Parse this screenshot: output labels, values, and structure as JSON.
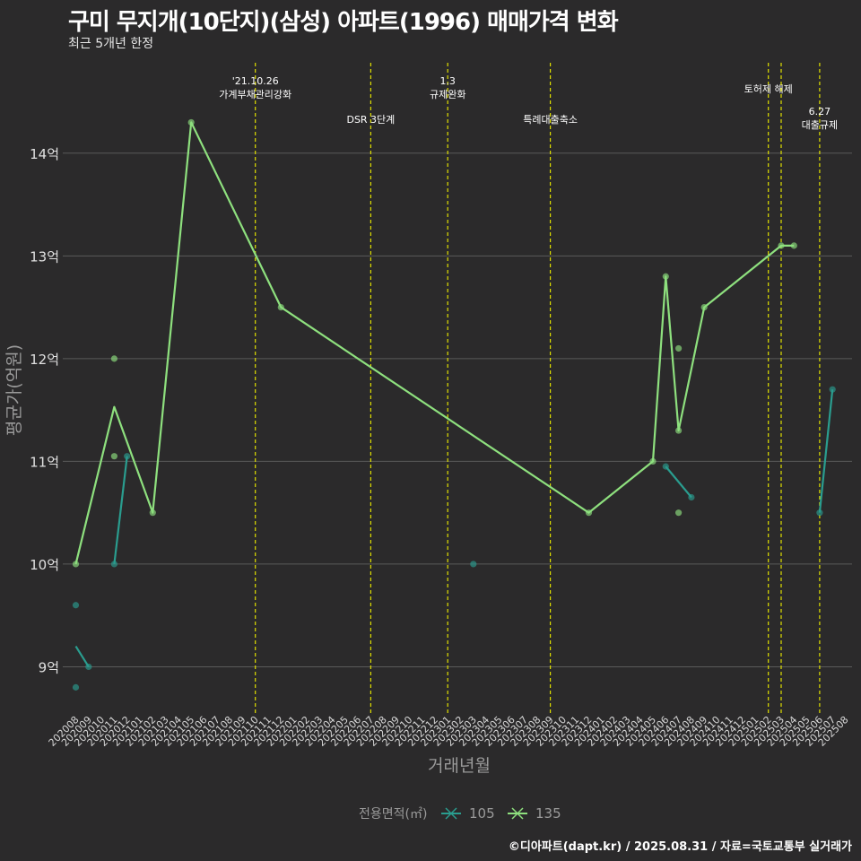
{
  "header": {
    "title": "구미 무지개(10단지)(삼성) 아파트(1996) 매매가격 변화",
    "subtitle": "최근 5개년 한정"
  },
  "caption": "©디아파트(dapt.kr) / 2025.08.31 / 자료=국토교통부 실거래가",
  "colors": {
    "background": "#2b2a2b",
    "grid": "#5a5a5a",
    "event_line": "#e0e000",
    "series_105": "#2a9d8f",
    "series_135": "#8ee07e"
  },
  "chart_data": {
    "type": "line",
    "xlabel": "거래년월",
    "ylabel": "평균가(억원)",
    "ylim": [
      8.55,
      14.95
    ],
    "y_ticks": [
      {
        "value": 9,
        "label": "9억"
      },
      {
        "value": 10,
        "label": "10억"
      },
      {
        "value": 11,
        "label": "11억"
      },
      {
        "value": 12,
        "label": "12억"
      },
      {
        "value": 13,
        "label": "13억"
      },
      {
        "value": 14,
        "label": "14억"
      }
    ],
    "x_categories": [
      "202008",
      "202009",
      "202010",
      "202011",
      "202012",
      "202101",
      "202102",
      "202103",
      "202104",
      "202105",
      "202106",
      "202107",
      "202108",
      "202109",
      "202110",
      "202111",
      "202112",
      "202201",
      "202202",
      "202203",
      "202204",
      "202205",
      "202206",
      "202207",
      "202208",
      "202209",
      "202210",
      "202211",
      "202212",
      "202301",
      "202302",
      "202303",
      "202304",
      "202305",
      "202306",
      "202307",
      "202308",
      "202309",
      "202310",
      "202311",
      "202312",
      "202401",
      "202402",
      "202403",
      "202404",
      "202405",
      "202406",
      "202407",
      "202408",
      "202409",
      "202410",
      "202411",
      "202412",
      "202501",
      "202502",
      "202503",
      "202504",
      "202505",
      "202506",
      "202507",
      "202508"
    ],
    "legend": {
      "title": "전용면적(㎡)",
      "position": "bottom"
    },
    "series": [
      {
        "name": "105",
        "line": [
          [
            "202008",
            9.2
          ],
          [
            "202009",
            9.0
          ],
          null,
          [
            "202011",
            10.0
          ],
          [
            "202012",
            11.05
          ],
          null,
          [
            "202406",
            10.95
          ],
          [
            "202408",
            10.65
          ],
          null,
          [
            "202506",
            10.5
          ],
          [
            "202507",
            11.7
          ]
        ],
        "points": [
          [
            "202008",
            9.6
          ],
          [
            "202008",
            8.8
          ],
          [
            "202009",
            9.0
          ],
          [
            "202011",
            10.0
          ],
          [
            "202012",
            11.05
          ],
          [
            "202303",
            10.0
          ],
          [
            "202406",
            10.95
          ],
          [
            "202408",
            10.65
          ],
          [
            "202506",
            10.5
          ],
          [
            "202507",
            11.7
          ]
        ]
      },
      {
        "name": "135",
        "line": [
          [
            "202008",
            10.0
          ],
          [
            "202011",
            11.53
          ],
          [
            "202102",
            10.5
          ],
          [
            "202105",
            14.3
          ],
          [
            "202112",
            12.5
          ],
          [
            "202312",
            10.5
          ],
          [
            "202405",
            11.0
          ],
          [
            "202406",
            12.8
          ],
          [
            "202407",
            11.3
          ],
          [
            "202409",
            12.5
          ],
          [
            "202503",
            13.1
          ],
          [
            "202504",
            13.1
          ]
        ],
        "points": [
          [
            "202008",
            10.0
          ],
          [
            "202011",
            12.0
          ],
          [
            "202011",
            11.05
          ],
          [
            "202102",
            10.5
          ],
          [
            "202105",
            14.3
          ],
          [
            "202112",
            12.5
          ],
          [
            "202312",
            10.5
          ],
          [
            "202405",
            11.0
          ],
          [
            "202406",
            12.8
          ],
          [
            "202407",
            12.1
          ],
          [
            "202407",
            11.3
          ],
          [
            "202407",
            10.5
          ],
          [
            "202409",
            12.5
          ],
          [
            "202503",
            13.1
          ],
          [
            "202504",
            13.1
          ]
        ]
      }
    ],
    "events": [
      {
        "x": "202110",
        "labels": [
          "'21.10.26",
          "가계부채관리강화"
        ],
        "row": "top"
      },
      {
        "x": "202207",
        "labels": [
          "DSR 3단계"
        ],
        "row": "low"
      },
      {
        "x": "202301",
        "labels": [
          "1.3",
          "규제완화"
        ],
        "row": "top"
      },
      {
        "x": "202309",
        "labels": [
          "특례대출축소"
        ],
        "row": "low"
      },
      {
        "x": "202502",
        "labels": [
          "토허제 해제"
        ],
        "row": "mid"
      },
      {
        "x": "202503",
        "labels": [],
        "row": "none"
      },
      {
        "x": "202506",
        "labels": [
          "6.27",
          "대출규제"
        ],
        "row": "right"
      }
    ]
  }
}
